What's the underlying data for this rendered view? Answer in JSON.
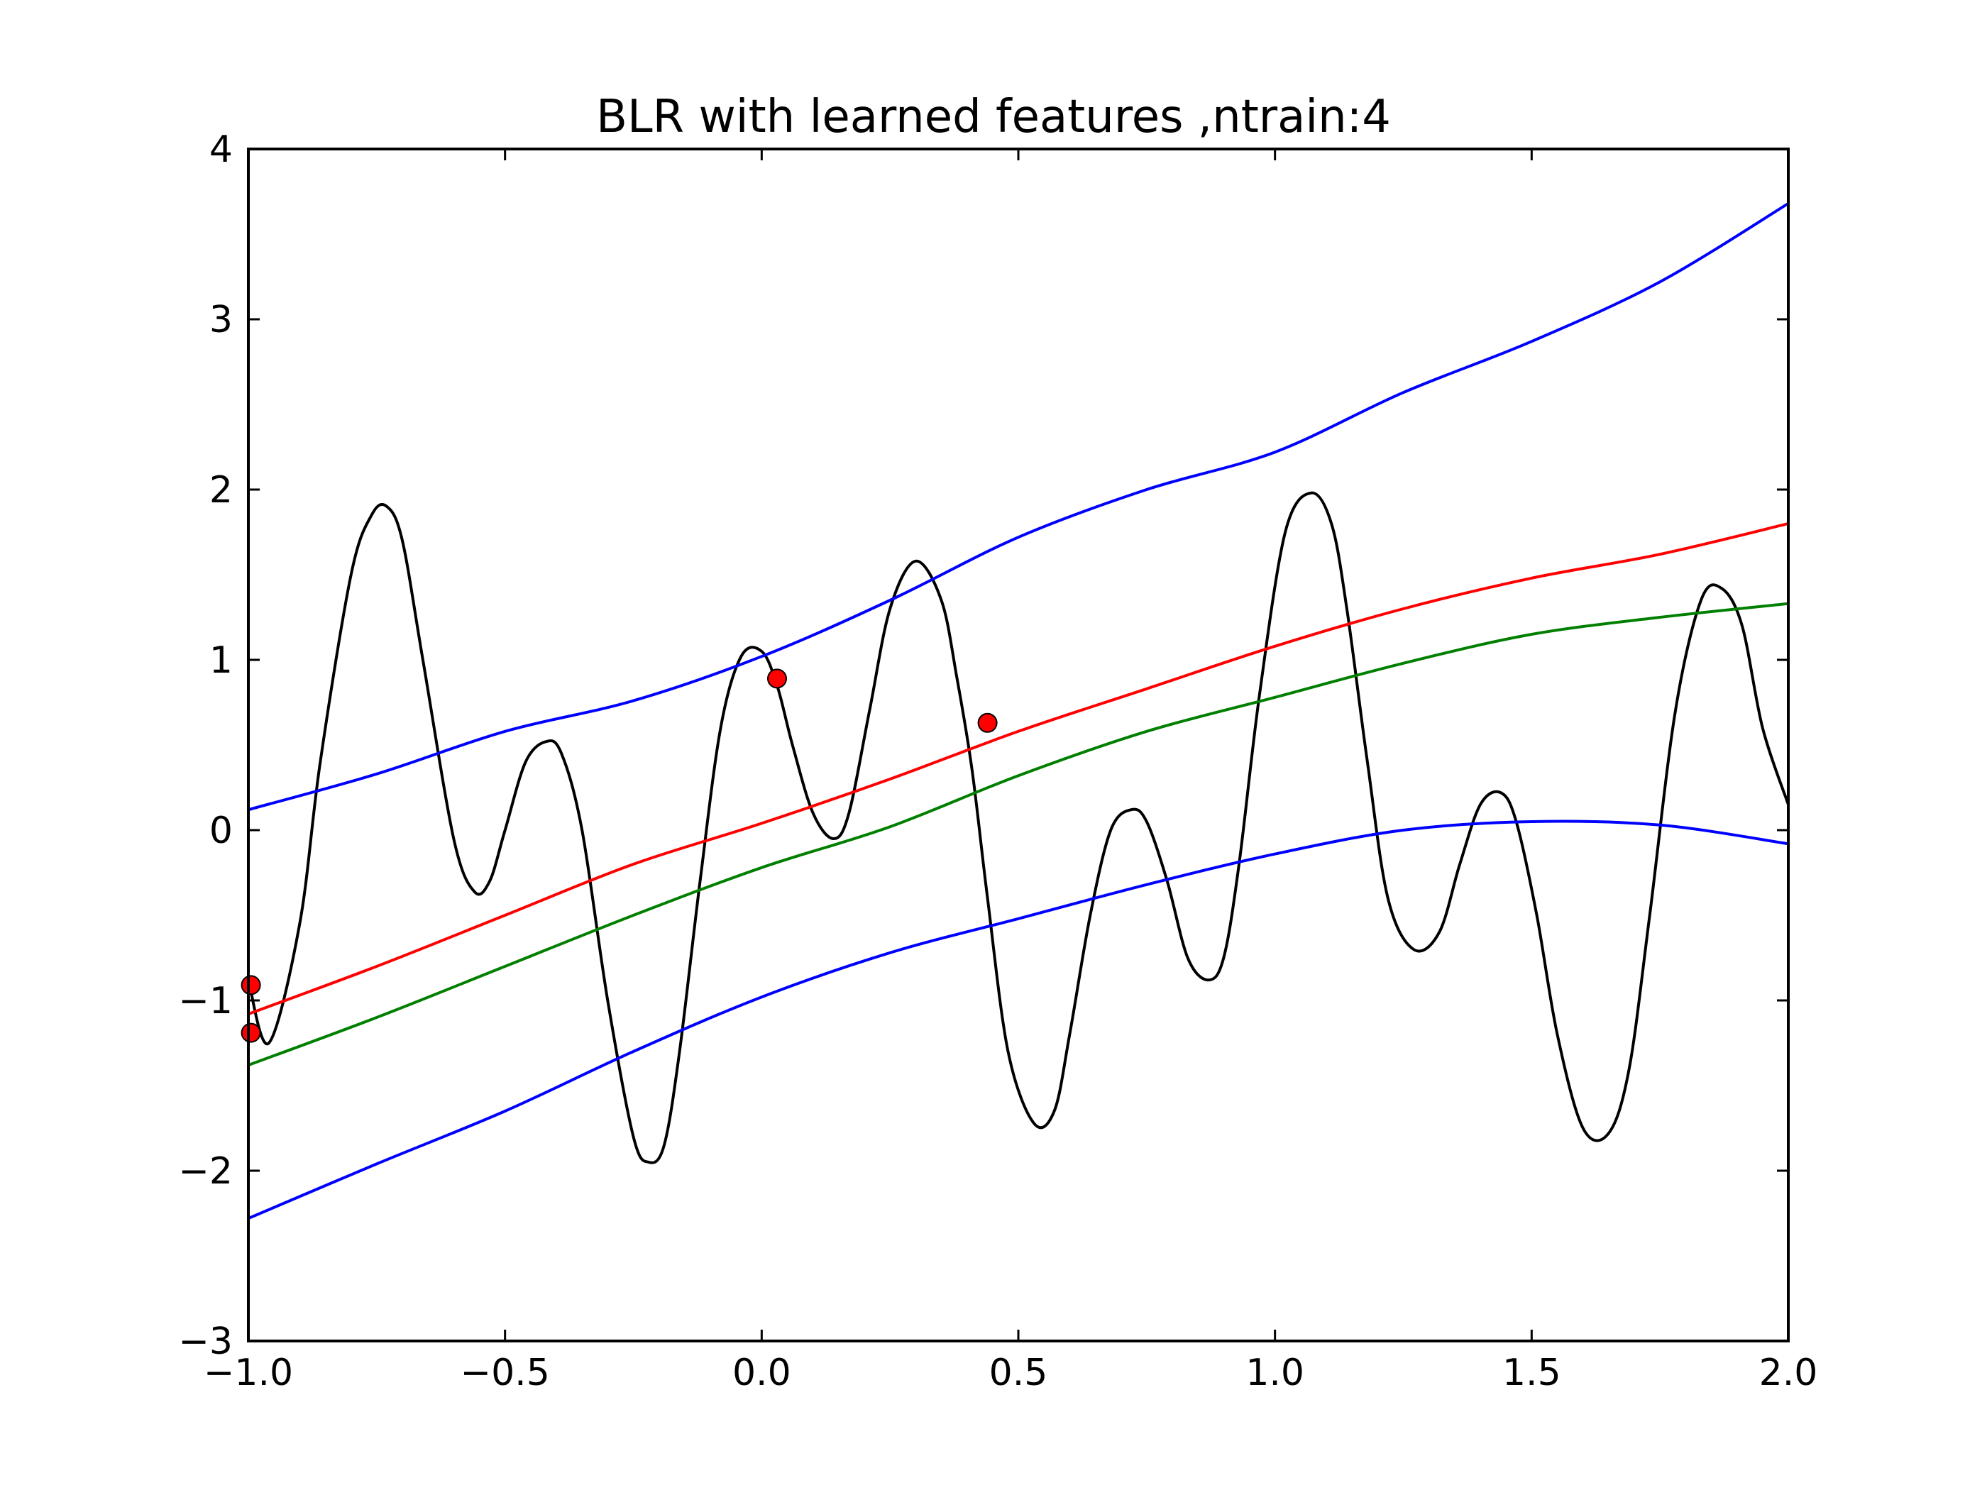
{
  "chart_data": {
    "type": "line",
    "title": "BLR with learned features ,ntrain:4",
    "xlabel": "",
    "ylabel": "",
    "xlim": [
      -1.0,
      2.0
    ],
    "ylim": [
      -3,
      4
    ],
    "xticks": [
      -1.0,
      -0.5,
      0.0,
      0.5,
      1.0,
      1.5,
      2.0
    ],
    "xtick_labels": [
      "−1.0",
      "−0.5",
      "0.0",
      "0.5",
      "1.0",
      "1.5",
      "2.0"
    ],
    "yticks": [
      -3,
      -2,
      -1,
      0,
      1,
      2,
      3,
      4
    ],
    "ytick_labels": [
      "−3",
      "−2",
      "−1",
      "0",
      "1",
      "2",
      "3",
      "4"
    ],
    "grid": false,
    "legend": "none",
    "series": [
      {
        "key": "true-function",
        "color": "#000000",
        "x": [
          -1.0,
          -0.96,
          -0.9,
          -0.86,
          -0.8,
          -0.76,
          -0.73,
          -0.7,
          -0.66,
          -0.6,
          -0.56,
          -0.53,
          -0.5,
          -0.46,
          -0.42,
          -0.39,
          -0.35,
          -0.3,
          -0.25,
          -0.22,
          -0.19,
          -0.16,
          -0.12,
          -0.08,
          -0.04,
          0.0,
          0.03,
          0.06,
          0.1,
          0.14,
          0.17,
          0.21,
          0.25,
          0.3,
          0.35,
          0.38,
          0.41,
          0.44,
          0.48,
          0.53,
          0.57,
          0.6,
          0.64,
          0.68,
          0.72,
          0.75,
          0.79,
          0.83,
          0.87,
          0.9,
          0.93,
          0.97,
          1.02,
          1.07,
          1.11,
          1.14,
          1.18,
          1.22,
          1.27,
          1.32,
          1.36,
          1.4,
          1.44,
          1.47,
          1.51,
          1.55,
          1.6,
          1.65,
          1.69,
          1.73,
          1.78,
          1.83,
          1.87,
          1.91,
          1.95,
          2.0
        ],
        "y": [
          -0.88,
          -1.25,
          -0.55,
          0.4,
          1.5,
          1.85,
          1.9,
          1.7,
          1.0,
          -0.05,
          -0.36,
          -0.3,
          0.0,
          0.4,
          0.52,
          0.45,
          0.0,
          -1.0,
          -1.8,
          -1.95,
          -1.85,
          -1.3,
          -0.3,
          0.6,
          1.02,
          1.05,
          0.85,
          0.5,
          0.1,
          -0.05,
          0.1,
          0.7,
          1.3,
          1.58,
          1.35,
          0.9,
          0.35,
          -0.4,
          -1.3,
          -1.72,
          -1.65,
          -1.2,
          -0.5,
          0.0,
          0.12,
          0.05,
          -0.3,
          -0.75,
          -0.88,
          -0.75,
          -0.2,
          0.8,
          1.75,
          1.98,
          1.8,
          1.3,
          0.4,
          -0.4,
          -0.7,
          -0.6,
          -0.2,
          0.15,
          0.22,
          0.05,
          -0.5,
          -1.2,
          -1.75,
          -1.78,
          -1.4,
          -0.5,
          0.7,
          1.35,
          1.42,
          1.2,
          0.6,
          0.15
        ]
      },
      {
        "key": "upper-bound",
        "color": "#0000ff",
        "x": [
          -1.0,
          -0.75,
          -0.5,
          -0.25,
          0.0,
          0.25,
          0.5,
          0.75,
          1.0,
          1.25,
          1.5,
          1.75,
          2.0
        ],
        "y": [
          0.12,
          0.33,
          0.58,
          0.76,
          1.02,
          1.35,
          1.72,
          2.0,
          2.22,
          2.57,
          2.87,
          3.22,
          3.68
        ]
      },
      {
        "key": "predictive-mean",
        "color": "#ff0000",
        "x": [
          -1.0,
          -0.75,
          -0.5,
          -0.25,
          0.0,
          0.25,
          0.5,
          0.75,
          1.0,
          1.25,
          1.5,
          1.75,
          2.0
        ],
        "y": [
          -1.08,
          -0.8,
          -0.5,
          -0.2,
          0.04,
          0.3,
          0.58,
          0.83,
          1.08,
          1.3,
          1.48,
          1.62,
          1.8
        ]
      },
      {
        "key": "green-curve",
        "color": "#007f00",
        "x": [
          -1.0,
          -0.75,
          -0.5,
          -0.25,
          0.0,
          0.25,
          0.5,
          0.75,
          1.0,
          1.25,
          1.5,
          1.75,
          2.0
        ],
        "y": [
          -1.38,
          -1.1,
          -0.8,
          -0.5,
          -0.22,
          0.02,
          0.32,
          0.58,
          0.78,
          0.98,
          1.15,
          1.25,
          1.33
        ]
      },
      {
        "key": "lower-bound",
        "color": "#0000ff",
        "x": [
          -1.0,
          -0.75,
          -0.5,
          -0.25,
          0.0,
          0.25,
          0.5,
          0.75,
          1.0,
          1.25,
          1.5,
          1.75,
          2.0
        ],
        "y": [
          -2.28,
          -1.96,
          -1.65,
          -1.3,
          -0.98,
          -0.72,
          -0.52,
          -0.32,
          -0.14,
          0.0,
          0.05,
          0.03,
          -0.08
        ]
      }
    ],
    "points": {
      "key": "training-points",
      "color": "#ff0000",
      "x": [
        -0.995,
        -0.995,
        0.03,
        0.44
      ],
      "y": [
        -0.91,
        -1.19,
        0.89,
        0.63
      ]
    }
  }
}
